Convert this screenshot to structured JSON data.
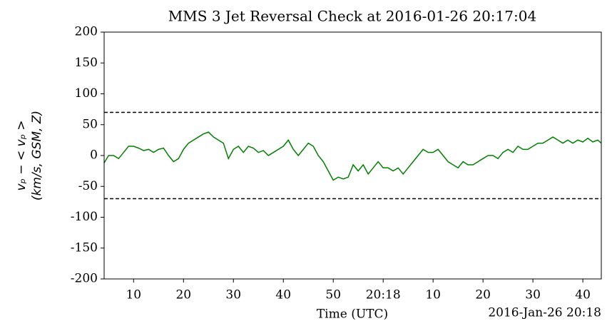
{
  "chart_data": {
    "type": "line",
    "title": "MMS 3 Jet Reversal Check at 2016-01-26 20:17:04",
    "xlabel": "Time (UTC)",
    "ylabel": [
      "vₚ − < vₚ >",
      "(km/s, GSM, Z)"
    ],
    "x_offset_label": "2016-Jan-26 20:18",
    "x": [
      4.1,
      5,
      6,
      7,
      8,
      9,
      10,
      11,
      12,
      13,
      14,
      15,
      16,
      17,
      18,
      19,
      20,
      21,
      22,
      23,
      24,
      25,
      26,
      27,
      28,
      29,
      30,
      31,
      32,
      33,
      34,
      35,
      36,
      37,
      38,
      39,
      40,
      41,
      42,
      43,
      44,
      45,
      46,
      47,
      48,
      49,
      50,
      51,
      52,
      53,
      54,
      55,
      56,
      57,
      58,
      59,
      60,
      61,
      62,
      63,
      64,
      65,
      66,
      67,
      68,
      69,
      70,
      71,
      72,
      73,
      74,
      75,
      76,
      77,
      78,
      79,
      80,
      81,
      82,
      83,
      84,
      85,
      86,
      87,
      88,
      89,
      90,
      91,
      92,
      93,
      94,
      95,
      96,
      97,
      98,
      99,
      100,
      101,
      102,
      103,
      103.7
    ],
    "series": [
      {
        "color": "#008000",
        "values": [
          -12,
          0,
          0,
          -5,
          5,
          15,
          15,
          12,
          8,
          10,
          5,
          10,
          12,
          0,
          -10,
          -5,
          10,
          20,
          25,
          30,
          35,
          38,
          30,
          25,
          20,
          -5,
          10,
          15,
          5,
          15,
          12,
          5,
          8,
          0,
          5,
          10,
          15,
          25,
          10,
          0,
          10,
          20,
          15,
          0,
          -10,
          -25,
          -40,
          -35,
          -38,
          -35,
          -15,
          -25,
          -15,
          -30,
          -20,
          -10,
          -20,
          -20,
          -25,
          -20,
          -30,
          -20,
          -10,
          0,
          10,
          5,
          5,
          10,
          0,
          -10,
          -15,
          -20,
          -10,
          -15,
          -15,
          -10,
          -5,
          0,
          0,
          -5,
          5,
          10,
          5,
          15,
          10,
          10,
          15,
          20,
          20,
          25,
          30,
          25,
          20,
          25,
          20,
          25,
          22,
          28,
          22,
          25,
          20
        ]
      }
    ],
    "hlines": [
      70,
      -70
    ],
    "xlim": [
      4.1,
      103.7
    ],
    "xticks": [
      10,
      20,
      30,
      40,
      50,
      {
        "value": 60,
        "label": "20:18"
      },
      {
        "value": 70,
        "label": "10"
      },
      {
        "value": 80,
        "label": "20"
      },
      {
        "value": 90,
        "label": "30"
      },
      {
        "value": 100,
        "label": "40"
      }
    ],
    "ylim": [
      -200,
      200
    ],
    "yticks": [
      -200,
      -150,
      -100,
      -50,
      0,
      50,
      100,
      150,
      200
    ]
  }
}
